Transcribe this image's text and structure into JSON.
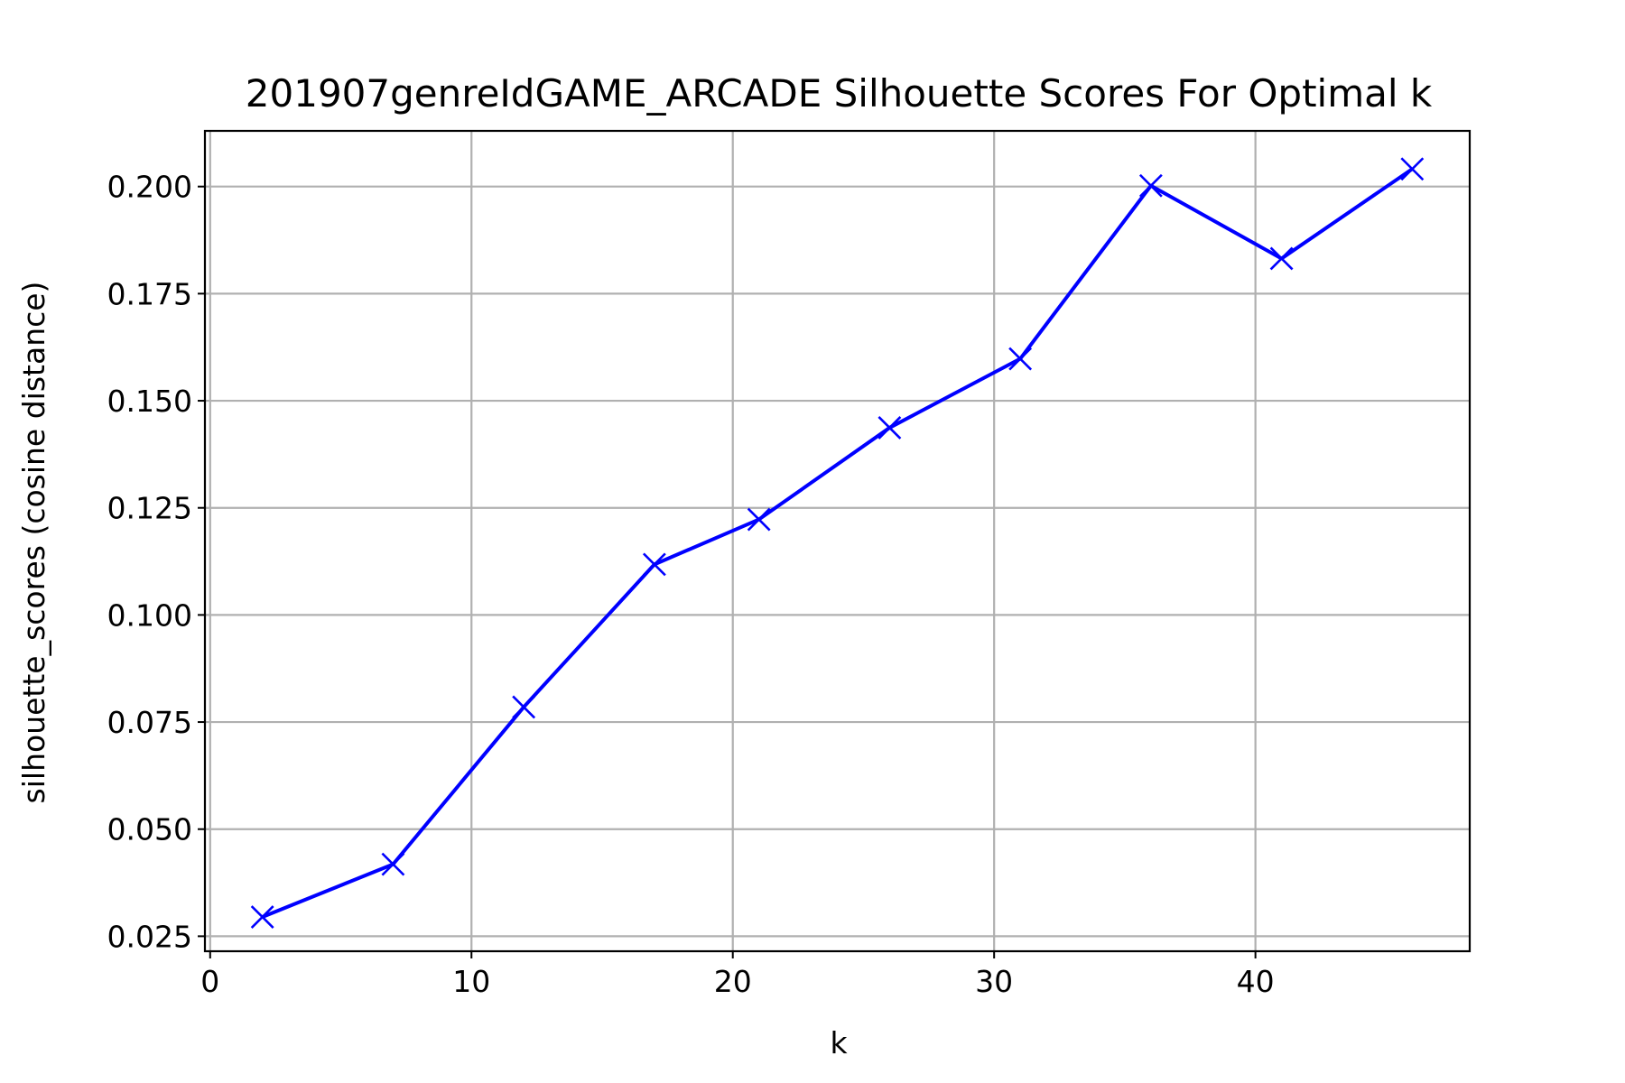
{
  "chart_data": {
    "type": "line",
    "title": "201907genreIdGAME_ARCADE Silhouette Scores For Optimal k",
    "xlabel": "k",
    "ylabel": "silhouette_scores (cosine distance)",
    "xlim": [
      -0.2,
      48.2
    ],
    "ylim": [
      0.0215,
      0.213
    ],
    "x_ticks": [
      0,
      10,
      20,
      30,
      40
    ],
    "x_tick_labels": [
      "0",
      "10",
      "20",
      "30",
      "40"
    ],
    "y_ticks": [
      0.025,
      0.05,
      0.075,
      0.1,
      0.125,
      0.15,
      0.175,
      0.2
    ],
    "y_tick_labels": [
      "0.025",
      "0.050",
      "0.075",
      "0.100",
      "0.125",
      "0.150",
      "0.175",
      "0.200"
    ],
    "grid": true,
    "series": [
      {
        "color": "#0000ff",
        "marker": "x",
        "x": [
          2,
          7,
          12,
          17,
          21,
          26,
          31,
          36,
          41,
          46
        ],
        "y": [
          0.0295,
          0.0418,
          0.0785,
          0.1118,
          0.1223,
          0.1437,
          0.1598,
          0.2002,
          0.1832,
          0.2041
        ]
      }
    ]
  }
}
